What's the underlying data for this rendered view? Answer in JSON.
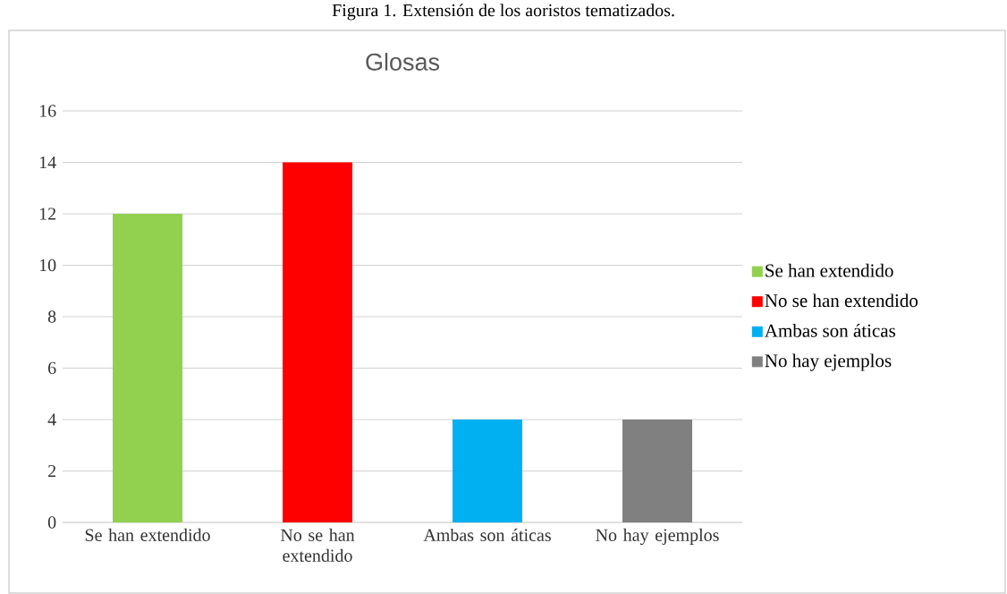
{
  "chart_data": {
    "type": "bar",
    "title": "Glosas",
    "categories": [
      "Se han extendido",
      "No se han extendido",
      "Ambas son áticas",
      "No hay ejemplos"
    ],
    "series": [
      {
        "name": "Se han extendido",
        "color": "#92d050",
        "values": [
          12,
          null,
          null,
          null
        ]
      },
      {
        "name": "No se han extendido",
        "color": "#ff0000",
        "values": [
          null,
          14,
          null,
          null
        ]
      },
      {
        "name": "Ambas son áticas",
        "color": "#00b0f0",
        "values": [
          null,
          null,
          4,
          null
        ]
      },
      {
        "name": "No hay ejemplos",
        "color": "#808080",
        "values": [
          null,
          null,
          null,
          4
        ]
      }
    ],
    "ylim": [
      0,
      16
    ],
    "yticks": [
      0,
      2,
      4,
      6,
      8,
      10,
      12,
      14,
      16
    ],
    "grid": "y",
    "legend": "right",
    "annotations": [
      "Figura 1. Extensión de los aoristos tematizados."
    ]
  }
}
